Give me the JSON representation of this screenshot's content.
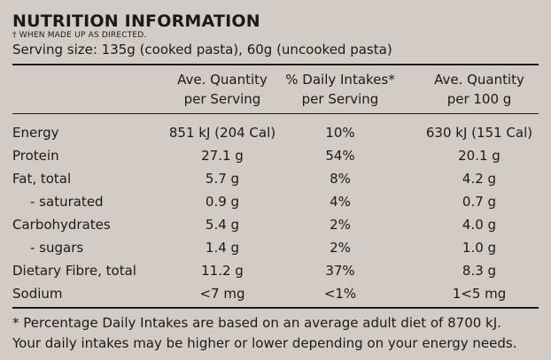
{
  "panel": {
    "title": "NUTRITION INFORMATION",
    "subtitle": "† WHEN MADE UP AS DIRECTED.",
    "serving": "Serving size: 135g (cooked pasta), 60g (uncooked pasta)"
  },
  "headers": {
    "col1_line1": "Ave. Quantity",
    "col1_line2": "per Serving",
    "col2_line1": "% Daily Intakes*",
    "col2_line2": "per Serving",
    "col3_line1": "Ave. Quantity",
    "col3_line2": "per 100 g"
  },
  "rows": [
    {
      "name": "Energy",
      "serving": "851 kJ (204 Cal)",
      "di": "10%",
      "per100": "630 kJ (151 Cal)",
      "indent": false
    },
    {
      "name": "Protein",
      "serving": "27.1 g",
      "di": "54%",
      "per100": "20.1 g",
      "indent": false
    },
    {
      "name": "Fat, total",
      "serving": "5.7 g",
      "di": "8%",
      "per100": "4.2 g",
      "indent": false
    },
    {
      "name": "- saturated",
      "serving": "0.9 g",
      "di": "4%",
      "per100": "0.7 g",
      "indent": true
    },
    {
      "name": "Carbohydrates",
      "serving": "5.4 g",
      "di": "2%",
      "per100": "4.0 g",
      "indent": false
    },
    {
      "name": "- sugars",
      "serving": "1.4 g",
      "di": "2%",
      "per100": "1.0 g",
      "indent": true
    },
    {
      "name": "Dietary Fibre, total",
      "serving": "11.2 g",
      "di": "37%",
      "per100": "8.3 g",
      "indent": false
    },
    {
      "name": "Sodium",
      "serving": "<7 mg",
      "di": "<1%",
      "per100": "1<5 mg",
      "indent": false
    }
  ],
  "footnote": {
    "line1": "* Percentage Daily Intakes are based on an average adult diet of 8700 kJ.",
    "line2": "Your daily intakes may be higher or lower depending on your energy needs."
  }
}
